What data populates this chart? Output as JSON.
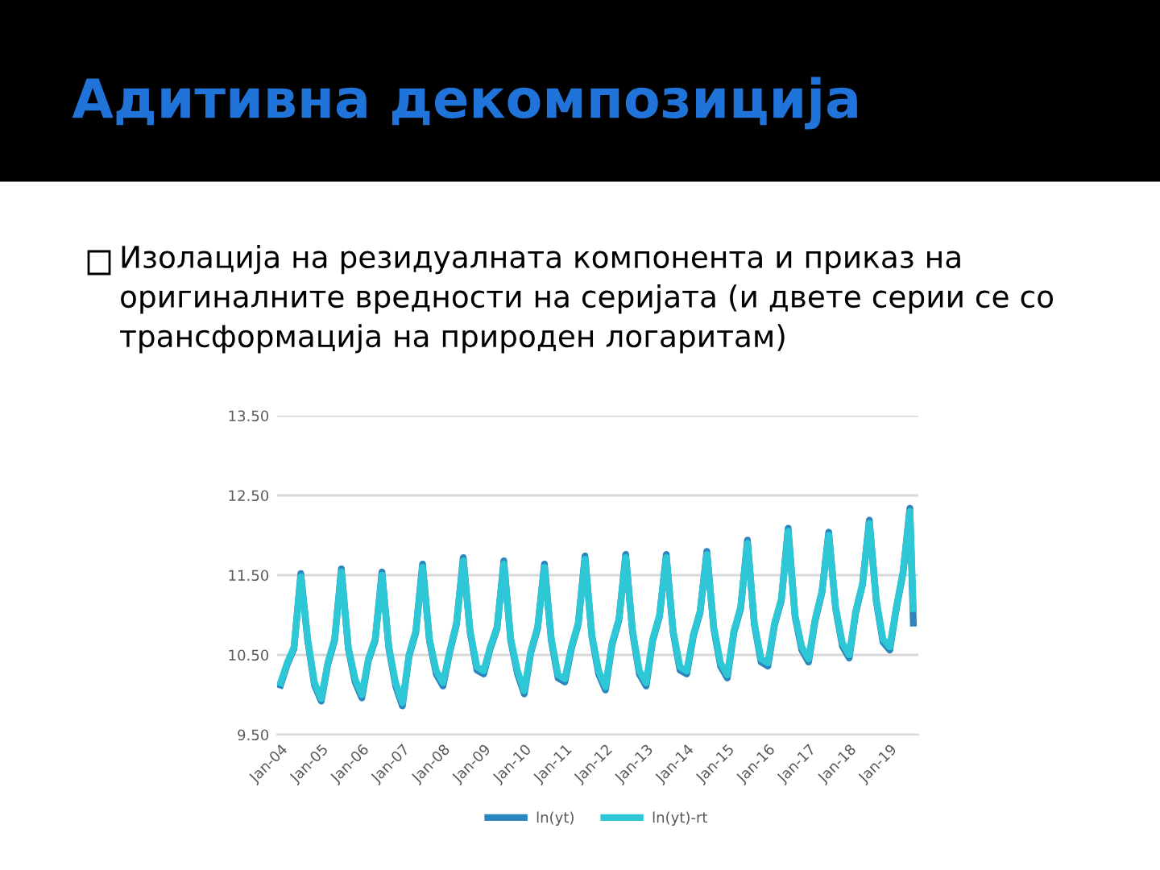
{
  "chart_data": {
    "type": "line",
    "title": "Адитивна декомпозиција",
    "subtitle": "Изолација на резидуалната компонента и приказ на оригиналните вредности на серијата (и двете серии се со трансформација на природен логаритам)",
    "x": [
      "2004-01",
      "2004-03",
      "2004-05",
      "2004-07",
      "2004-09",
      "2004-11",
      "2005-01",
      "2005-03",
      "2005-05",
      "2005-07",
      "2005-09",
      "2005-11",
      "2006-01",
      "2006-03",
      "2006-05",
      "2006-07",
      "2006-09",
      "2006-11",
      "2007-01",
      "2007-03",
      "2007-05",
      "2007-07",
      "2007-09",
      "2007-11",
      "2008-01",
      "2008-03",
      "2008-05",
      "2008-07",
      "2008-09",
      "2008-11",
      "2009-01",
      "2009-03",
      "2009-05",
      "2009-07",
      "2009-09",
      "2009-11",
      "2010-01",
      "2010-03",
      "2010-05",
      "2010-07",
      "2010-09",
      "2010-11",
      "2011-01",
      "2011-03",
      "2011-05",
      "2011-07",
      "2011-09",
      "2011-11",
      "2012-01",
      "2012-03",
      "2012-05",
      "2012-07",
      "2012-09",
      "2012-11",
      "2013-01",
      "2013-03",
      "2013-05",
      "2013-07",
      "2013-09",
      "2013-11",
      "2014-01",
      "2014-03",
      "2014-05",
      "2014-07",
      "2014-09",
      "2014-11",
      "2015-01",
      "2015-03",
      "2015-05",
      "2015-07",
      "2015-09",
      "2015-11",
      "2016-01",
      "2016-03",
      "2016-05",
      "2016-07",
      "2016-09",
      "2016-11",
      "2017-01",
      "2017-03",
      "2017-05",
      "2017-07",
      "2017-09",
      "2017-11",
      "2018-01",
      "2018-03",
      "2018-05",
      "2018-07",
      "2018-09",
      "2018-11",
      "2019-01",
      "2019-03",
      "2019-05",
      "2019-07",
      "2019-08"
    ],
    "series": [
      {
        "name": "ln(yt)",
        "color": "#2a86bd",
        "values": [
          10.12,
          10.38,
          10.58,
          11.52,
          10.68,
          10.12,
          9.92,
          10.38,
          10.68,
          11.58,
          10.58,
          10.16,
          9.96,
          10.43,
          10.68,
          11.54,
          10.58,
          10.11,
          9.86,
          10.48,
          10.78,
          11.64,
          10.68,
          10.26,
          10.11,
          10.53,
          10.88,
          11.72,
          10.78,
          10.31,
          10.26,
          10.58,
          10.83,
          11.68,
          10.68,
          10.26,
          10.01,
          10.53,
          10.83,
          11.64,
          10.68,
          10.21,
          10.16,
          10.58,
          10.88,
          11.74,
          10.73,
          10.26,
          10.06,
          10.63,
          10.93,
          11.76,
          10.78,
          10.26,
          10.11,
          10.68,
          10.98,
          11.76,
          10.78,
          10.31,
          10.26,
          10.73,
          11.03,
          11.8,
          10.83,
          10.36,
          10.21,
          10.78,
          11.08,
          11.94,
          10.88,
          10.41,
          10.36,
          10.88,
          11.18,
          12.09,
          10.98,
          10.56,
          10.41,
          10.93,
          11.28,
          12.04,
          11.08,
          10.61,
          10.46,
          11.03,
          11.38,
          12.19,
          11.18,
          10.66,
          10.56,
          11.08,
          11.53,
          12.34,
          10.9
        ]
      },
      {
        "name": "ln(yt)-rt",
        "color": "#2ec7d6",
        "values": [
          10.15,
          10.4,
          10.6,
          11.48,
          10.7,
          10.15,
          9.95,
          10.4,
          10.7,
          11.54,
          10.6,
          10.2,
          10.0,
          10.45,
          10.7,
          11.5,
          10.6,
          10.15,
          9.9,
          10.5,
          10.8,
          11.6,
          10.7,
          10.3,
          10.15,
          10.55,
          10.9,
          11.68,
          10.8,
          10.35,
          10.3,
          10.6,
          10.85,
          11.64,
          10.7,
          10.3,
          10.05,
          10.55,
          10.85,
          11.6,
          10.7,
          10.25,
          10.2,
          10.6,
          10.9,
          11.7,
          10.75,
          10.3,
          10.1,
          10.65,
          10.95,
          11.72,
          10.8,
          10.3,
          10.15,
          10.7,
          11.0,
          11.72,
          10.8,
          10.35,
          10.3,
          10.75,
          11.05,
          11.76,
          10.85,
          10.4,
          10.25,
          10.8,
          11.1,
          11.9,
          10.9,
          10.45,
          10.4,
          10.9,
          11.2,
          12.05,
          11.0,
          10.6,
          10.45,
          10.95,
          11.3,
          12.0,
          11.1,
          10.65,
          10.5,
          11.05,
          11.4,
          12.15,
          11.2,
          10.7,
          10.6,
          11.1,
          11.55,
          12.3,
          11.08
        ]
      }
    ],
    "xlim": [
      "2003-12-01",
      "2019-09-15"
    ],
    "xticks": [
      {
        "value": "2004-01",
        "label": "Jan-04"
      },
      {
        "value": "2005-01",
        "label": "Jan-05"
      },
      {
        "value": "2006-01",
        "label": "Jan-06"
      },
      {
        "value": "2007-01",
        "label": "Jan-07"
      },
      {
        "value": "2008-01",
        "label": "Jan-08"
      },
      {
        "value": "2009-01",
        "label": "Jan-09"
      },
      {
        "value": "2010-01",
        "label": "Jan-10"
      },
      {
        "value": "2011-01",
        "label": "Jan-11"
      },
      {
        "value": "2012-01",
        "label": "Jan-12"
      },
      {
        "value": "2013-01",
        "label": "Jan-13"
      },
      {
        "value": "2014-01",
        "label": "Jan-14"
      },
      {
        "value": "2015-01",
        "label": "Jan-15"
      },
      {
        "value": "2016-01",
        "label": "Jan-16"
      },
      {
        "value": "2017-01",
        "label": "Jan-17"
      },
      {
        "value": "2018-01",
        "label": "Jan-18"
      },
      {
        "value": "2019-01",
        "label": "Jan-19"
      }
    ],
    "ylim": [
      9.5,
      13.5
    ],
    "yticks": [
      {
        "value": 9.5,
        "label": "9.50"
      },
      {
        "value": 10.5,
        "label": "10.50"
      },
      {
        "value": 11.5,
        "label": "11.50"
      },
      {
        "value": 12.5,
        "label": "12.50"
      },
      {
        "value": 13.5,
        "label": "13.50"
      }
    ],
    "grid": "y",
    "legend": "bottom",
    "marker": "none",
    "line_style": "solid"
  }
}
